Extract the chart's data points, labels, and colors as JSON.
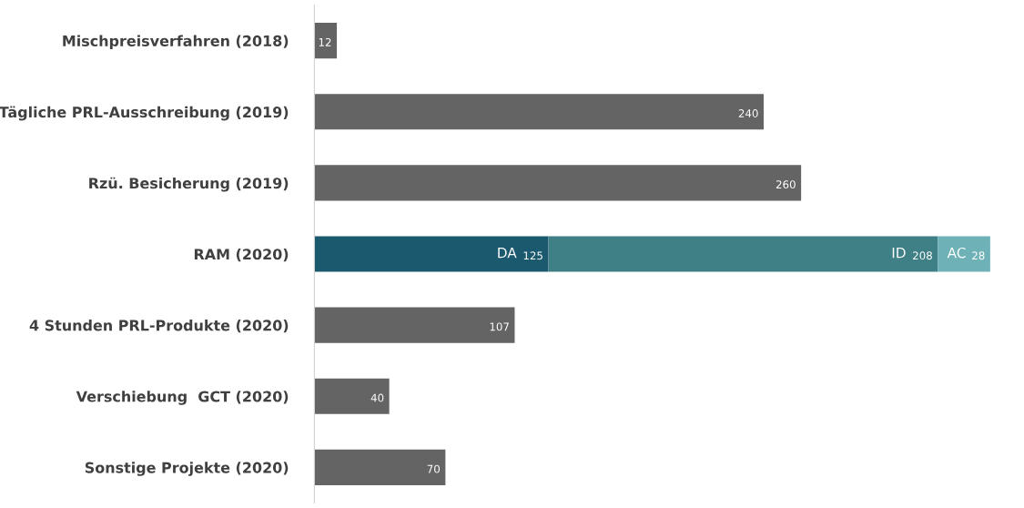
{
  "chart_data": {
    "type": "bar",
    "orientation": "horizontal",
    "stacked": true,
    "data_labels": true,
    "tick_labels": "y",
    "grid": false,
    "legend": false,
    "categories": [
      "Mischpreisverfahren (2018)",
      "Tägliche PRL-Ausschreibung (2019)",
      "Rzü. Besicherung (2019)",
      "RAM (2020)",
      "4 Stunden PRL-Produkte (2020)",
      "Verschiebung  GCT (2020)",
      "Sonstige Projekte (2020)"
    ],
    "series": [
      {
        "color": "#646464",
        "values": [
          12,
          240,
          260,
          null,
          107,
          40,
          70
        ]
      },
      {
        "name": "DA",
        "color": "#1b5a6e",
        "values": [
          null,
          null,
          null,
          125,
          null,
          null,
          null
        ]
      },
      {
        "name": "ID",
        "color": "#3f7f86",
        "values": [
          null,
          null,
          null,
          208,
          null,
          null,
          null
        ]
      },
      {
        "name": "AC",
        "color": "#6eb2b8",
        "values": [
          null,
          null,
          null,
          28,
          null,
          null,
          null
        ]
      }
    ]
  }
}
